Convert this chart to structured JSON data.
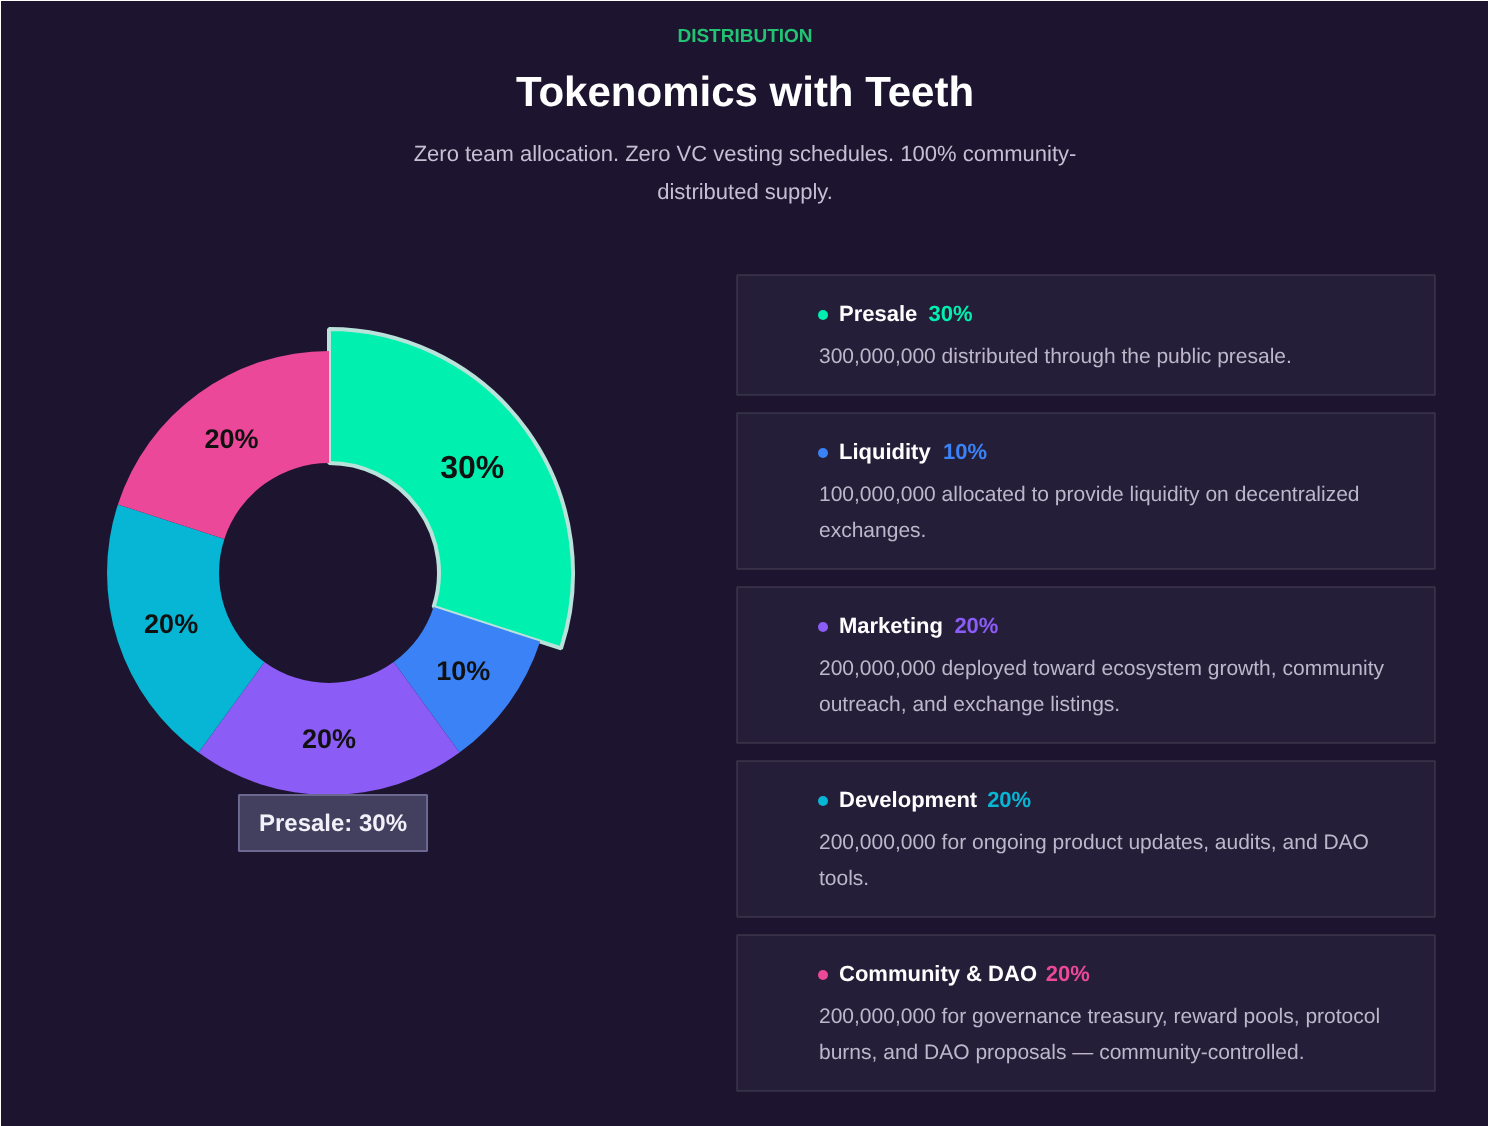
{
  "chart_data": {
    "type": "donut",
    "title": "Tokenomics with Teeth",
    "subtitle": "Zero team allocation. Zero VC vesting schedules. 100% community-distributed supply.",
    "categories": [
      "Presale",
      "Liquidity",
      "Marketing",
      "Development",
      "Community & DAO"
    ],
    "values": [
      30,
      10,
      20,
      20,
      20
    ],
    "colors": [
      "#00f0b0",
      "#3b82f6",
      "#8b5cf6",
      "#06b6d4",
      "#ec4899"
    ],
    "value_labels": [
      "30%",
      "10%",
      "20%",
      "20%",
      "20%"
    ],
    "legend": "right",
    "annotations": [
      "DISTRIBUTION",
      "Presale: 30%",
      "300,000,000 distributed through the public presale.",
      "100,000,000 allocated to provide liquidity on decentralized exchanges.",
      "200,000,000 deployed toward ecosystem growth, community outreach, and exchange listings.",
      "200,000,000 for ongoing product updates, audits, and DAO tools.",
      "200,000,000 for governance treasury, reward pools, protocol burns, and DAO proposals — community-controlled."
    ]
  }
}
